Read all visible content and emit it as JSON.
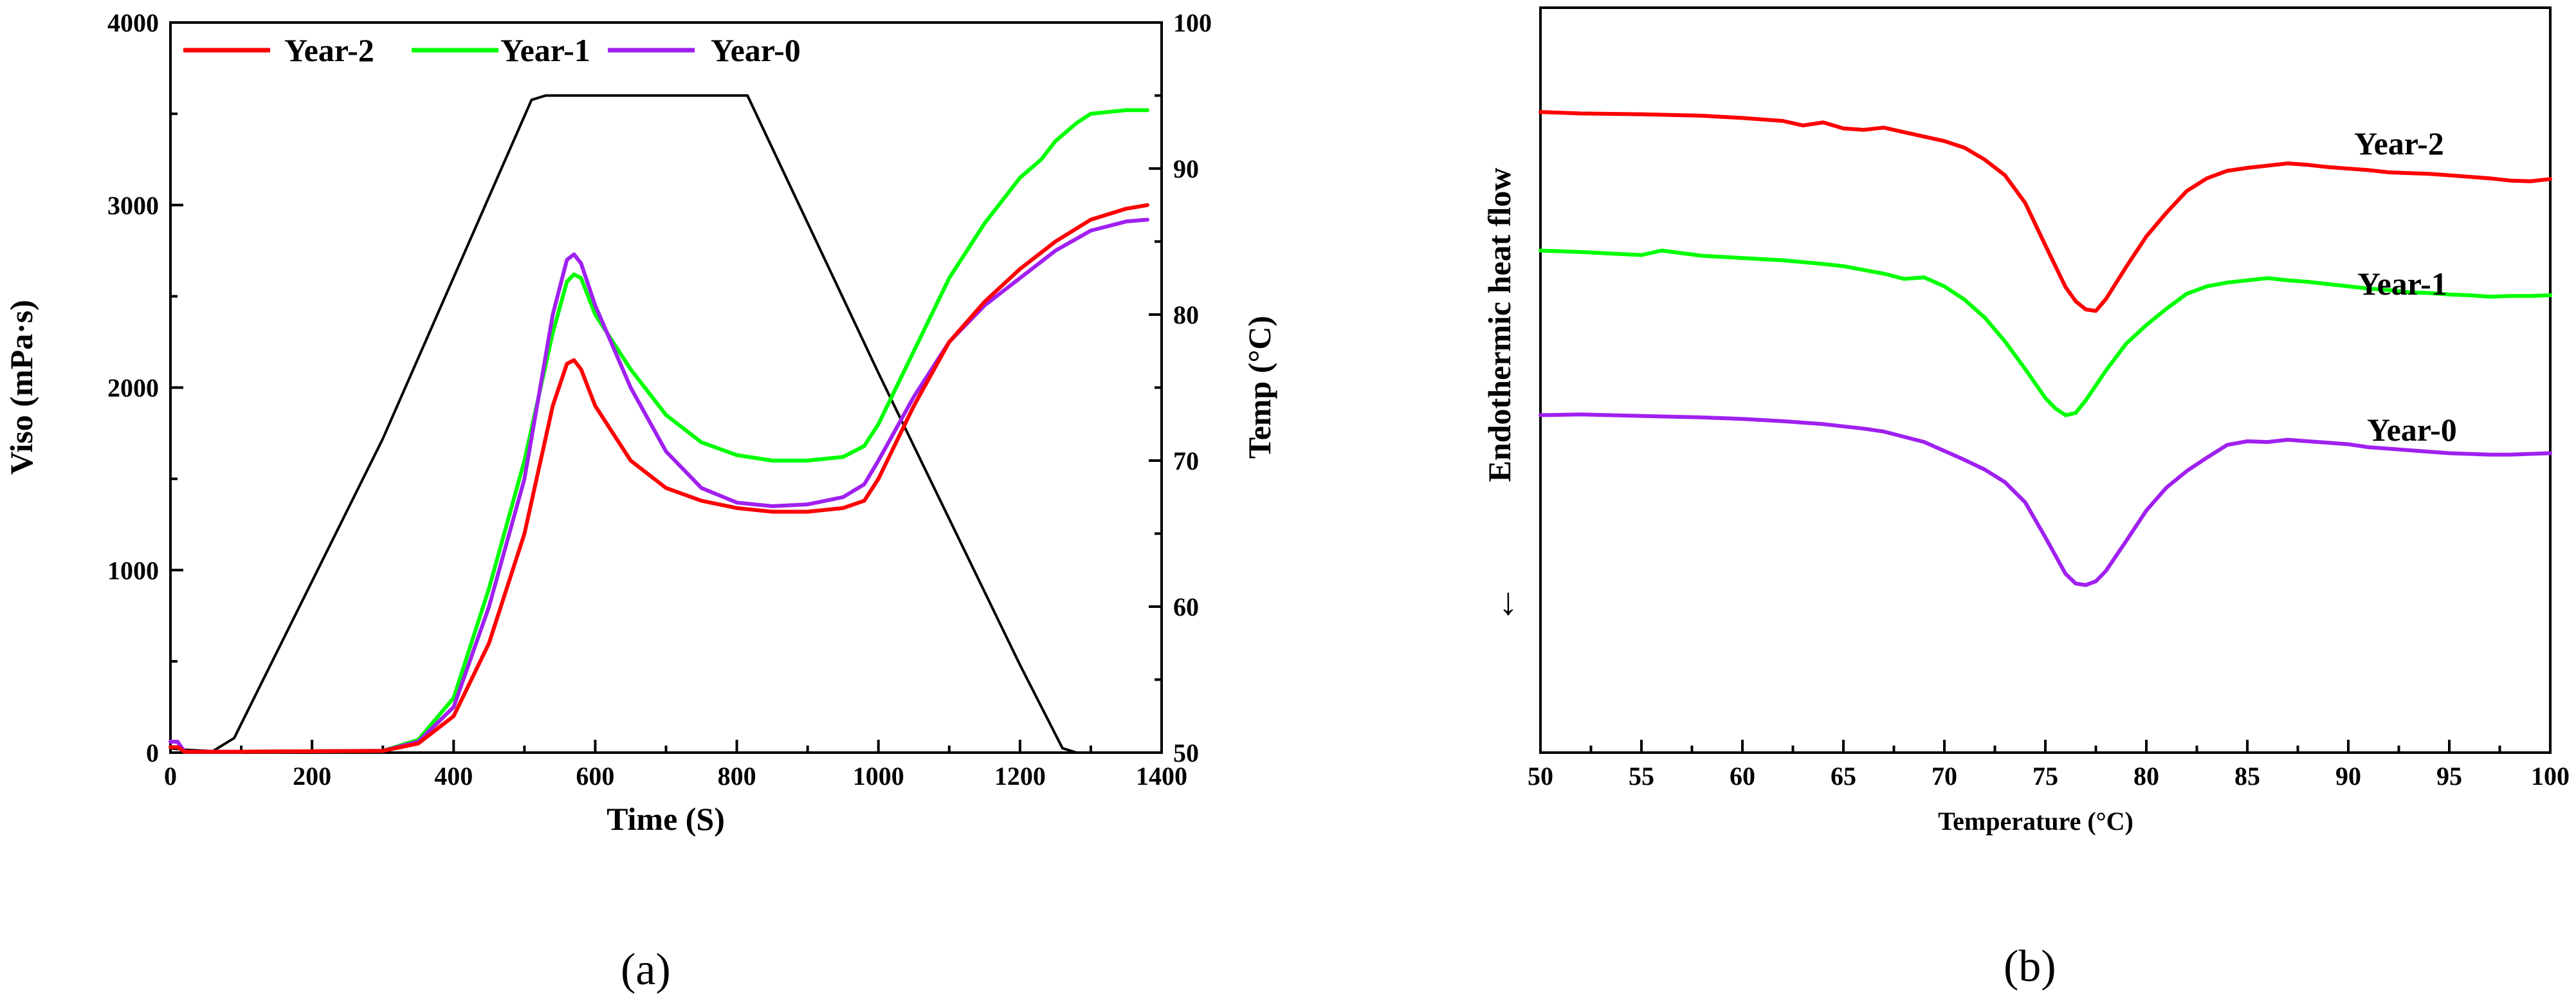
{
  "chart_data": [
    {
      "type": "line",
      "panel_label": "(a)",
      "xlabel": "Time (S)",
      "ylabel": "Viso (mPa·s)",
      "y2label": "Temp (°C)",
      "xlim": [
        0,
        1400
      ],
      "ylim": [
        0,
        4000
      ],
      "y2lim": [
        50,
        100
      ],
      "xticks": [
        "0",
        "200",
        "400",
        "600",
        "800",
        "1000",
        "1200",
        "1400"
      ],
      "yticks": [
        "0",
        "1000",
        "2000",
        "3000",
        "4000"
      ],
      "y2ticks": [
        "50",
        "60",
        "70",
        "80",
        "90",
        "100"
      ],
      "legend_position": "top-left",
      "series": [
        {
          "name": "Year-2",
          "color": "#ff0000",
          "x": [
            0,
            10,
            20,
            100,
            300,
            350,
            400,
            450,
            500,
            540,
            560,
            570,
            580,
            600,
            650,
            700,
            750,
            800,
            850,
            900,
            950,
            980,
            1000,
            1050,
            1100,
            1150,
            1200,
            1250,
            1300,
            1350,
            1380
          ],
          "y": [
            30,
            30,
            5,
            5,
            10,
            50,
            200,
            600,
            1200,
            1900,
            2130,
            2150,
            2100,
            1900,
            1600,
            1450,
            1380,
            1340,
            1320,
            1320,
            1340,
            1380,
            1500,
            1900,
            2250,
            2470,
            2650,
            2800,
            2920,
            2980,
            3000
          ]
        },
        {
          "name": "Year-1",
          "color": "#00ff00",
          "x": [
            0,
            10,
            20,
            100,
            300,
            350,
            400,
            450,
            500,
            540,
            560,
            570,
            580,
            600,
            650,
            700,
            750,
            800,
            850,
            900,
            950,
            980,
            1000,
            1050,
            1100,
            1150,
            1200,
            1230,
            1250,
            1280,
            1300,
            1350,
            1380
          ],
          "y": [
            30,
            30,
            5,
            5,
            10,
            70,
            300,
            900,
            1600,
            2300,
            2580,
            2620,
            2600,
            2400,
            2100,
            1850,
            1700,
            1630,
            1600,
            1600,
            1620,
            1680,
            1800,
            2200,
            2600,
            2900,
            3150,
            3250,
            3350,
            3450,
            3500,
            3520,
            3520
          ]
        },
        {
          "name": "Year-0",
          "color": "#a020f0",
          "x": [
            0,
            10,
            20,
            100,
            300,
            350,
            400,
            450,
            500,
            540,
            560,
            570,
            580,
            600,
            650,
            700,
            750,
            800,
            850,
            900,
            950,
            980,
            1000,
            1050,
            1100,
            1150,
            1200,
            1250,
            1300,
            1350,
            1380
          ],
          "y": [
            60,
            60,
            5,
            5,
            10,
            60,
            250,
            800,
            1500,
            2400,
            2700,
            2730,
            2680,
            2450,
            2000,
            1650,
            1450,
            1370,
            1350,
            1360,
            1400,
            1470,
            1600,
            1950,
            2250,
            2450,
            2600,
            2750,
            2860,
            2910,
            2920
          ]
        },
        {
          "name": "Temp",
          "color": "#000000",
          "axis": "right",
          "x": [
            0,
            20,
            60,
            90,
            300,
            510,
            530,
            600,
            700,
            815,
            1000,
            1100,
            1200,
            1260,
            1280,
            1300
          ],
          "y": [
            50.3,
            50.2,
            50.1,
            51,
            71.5,
            94.7,
            95,
            95,
            95,
            95,
            76,
            66,
            56,
            50.3,
            50,
            50
          ]
        }
      ]
    },
    {
      "type": "line",
      "panel_label": "(b)",
      "xlabel": "Temperature (°C)",
      "ylabel": "Endothermic heat flow",
      "arrow_glyph": "↓",
      "xlim": [
        50,
        100
      ],
      "ylim": [
        0,
        100
      ],
      "xticks": [
        "50",
        "55",
        "60",
        "65",
        "70",
        "75",
        "80",
        "85",
        "90",
        "95",
        "100"
      ],
      "yticks_shown": false,
      "series": [
        {
          "name": "Year-2",
          "label": "Year-2",
          "color": "#ff0000",
          "x": [
            50,
            52,
            55,
            58,
            60,
            62,
            63,
            64,
            65,
            66,
            67,
            68,
            70,
            71,
            72,
            73,
            74,
            75,
            76,
            76.5,
            77,
            77.5,
            78,
            79,
            80,
            81,
            82,
            83,
            84,
            85,
            86,
            87,
            88,
            89,
            90,
            91,
            92,
            93,
            94,
            95,
            96,
            97,
            98,
            99,
            100
          ],
          "y": [
            86.0,
            85.8,
            85.7,
            85.5,
            85.2,
            84.8,
            84.2,
            84.6,
            83.8,
            83.6,
            83.9,
            83.3,
            82.1,
            81.2,
            79.6,
            77.5,
            73.8,
            68.1,
            62.5,
            60.6,
            59.5,
            59.3,
            60.9,
            65.2,
            69.3,
            72.5,
            75.4,
            77.1,
            78.1,
            78.5,
            78.8,
            79.1,
            78.9,
            78.6,
            78.4,
            78.2,
            77.9,
            77.8,
            77.7,
            77.5,
            77.3,
            77.1,
            76.8,
            76.7,
            77.0
          ]
        },
        {
          "name": "Year-1",
          "label": "Year-1",
          "color": "#00ff00",
          "x": [
            50,
            52,
            55,
            56,
            58,
            60,
            62,
            64,
            65,
            66,
            67,
            68,
            69,
            70,
            71,
            72,
            73,
            74,
            75,
            75.5,
            76,
            76.5,
            77,
            78,
            79,
            80,
            81,
            82,
            83,
            84,
            85,
            86,
            87,
            88,
            89,
            90,
            91,
            92,
            93,
            94,
            95,
            96,
            97,
            98,
            99,
            100
          ],
          "y": [
            67.4,
            67.2,
            66.8,
            67.4,
            66.7,
            66.4,
            66.1,
            65.6,
            65.3,
            64.8,
            64.3,
            63.6,
            63.8,
            62.6,
            60.8,
            58.4,
            55.2,
            51.5,
            47.6,
            46.2,
            45.3,
            45.6,
            47.3,
            51.3,
            54.9,
            57.4,
            59.6,
            61.6,
            62.6,
            63.1,
            63.4,
            63.7,
            63.4,
            63.2,
            62.9,
            62.6,
            62.3,
            62.1,
            61.8,
            61.7,
            61.5,
            61.4,
            61.2,
            61.3,
            61.3,
            61.4
          ]
        },
        {
          "name": "Year-0",
          "label": "Year-0",
          "color": "#a020f0",
          "x": [
            50,
            52,
            55,
            58,
            60,
            62,
            64,
            65,
            66,
            67,
            68,
            69,
            70,
            71,
            72,
            73,
            74,
            75,
            76,
            76.5,
            77,
            77.5,
            78,
            79,
            80,
            81,
            82,
            83,
            84,
            85,
            86,
            87,
            88,
            89,
            90,
            91,
            92,
            93,
            94,
            95,
            96,
            97,
            98,
            99,
            100
          ],
          "y": [
            45.3,
            45.4,
            45.2,
            45.0,
            44.8,
            44.5,
            44.1,
            43.8,
            43.5,
            43.1,
            42.4,
            41.7,
            40.5,
            39.3,
            38.0,
            36.3,
            33.6,
            28.9,
            24.0,
            22.7,
            22.5,
            23.0,
            24.4,
            28.4,
            32.5,
            35.6,
            37.8,
            39.6,
            41.3,
            41.8,
            41.7,
            42.0,
            41.8,
            41.6,
            41.4,
            41.0,
            40.8,
            40.6,
            40.4,
            40.2,
            40.1,
            40.0,
            40.0,
            40.1,
            40.2
          ]
        }
      ]
    }
  ]
}
